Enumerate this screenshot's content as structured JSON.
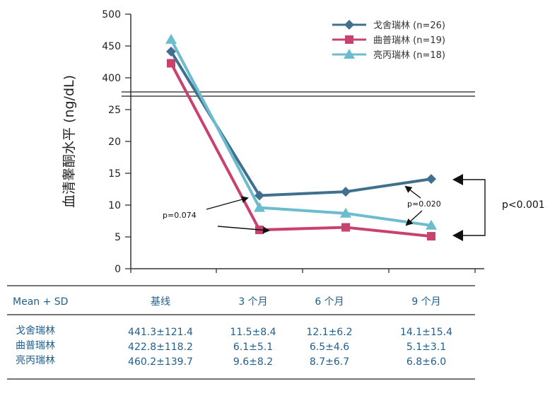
{
  "chart_data": {
    "type": "line",
    "ylabel": "血清睾酮水平 (ng/dL)",
    "y_ticks_upper": [
      400,
      450,
      500
    ],
    "y_ticks_lower": [
      0,
      5,
      10,
      15,
      20,
      25
    ],
    "y_axis_break": true,
    "categories": [
      "基线",
      "3 个月",
      "6 个月",
      "9 个月"
    ],
    "series": [
      {
        "name": "戈舍瑞林 (n=26)",
        "values": [
          441.3,
          11.5,
          12.1,
          14.1
        ],
        "color": "#41708f",
        "marker": "diamond"
      },
      {
        "name": "曲普瑞林 (n=19)",
        "values": [
          422.8,
          6.1,
          6.5,
          5.1
        ],
        "color": "#c9426f",
        "marker": "square"
      },
      {
        "name": "亮丙瑞林 (n=18)",
        "values": [
          460.2,
          9.6,
          8.7,
          6.8
        ],
        "color": "#6bbccd",
        "marker": "triangle"
      }
    ],
    "annotations": [
      "p=0.074",
      "p=0.020",
      "p<0.001"
    ],
    "legend_position": "top-right"
  },
  "table": {
    "header_label": "Mean + SD",
    "columns": [
      "基线",
      "3 个月",
      "6 个月",
      "9 个月"
    ],
    "rows": [
      {
        "label": "戈舍瑞林",
        "cells": [
          "441.3±121.4",
          "11.5±8.4",
          "12.1±6.2",
          "14.1±15.4"
        ]
      },
      {
        "label": "曲普瑞林",
        "cells": [
          "422.8±118.2",
          "6.1±5.1",
          "6.5±4.6",
          "5.1±3.1"
        ]
      },
      {
        "label": "亮丙瑞林",
        "cells": [
          "460.2±139.7",
          "9.6±8.2",
          "8.7±6.7",
          "6.8±6.0"
        ]
      }
    ]
  }
}
